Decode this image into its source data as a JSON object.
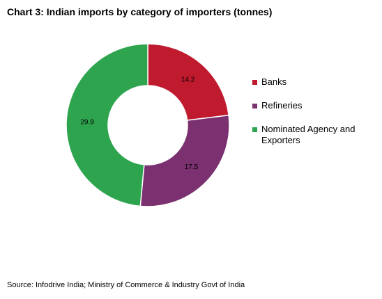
{
  "title": "Chart 3: Indian imports by category of importers (tonnes)",
  "source": "Source: Infodrive India; Ministry of Commerce & Industry Govt of India",
  "colors": {
    "banks": "#bf1a2e",
    "refineries": "#7b3170",
    "nominated": "#2ea44f"
  },
  "chart_data": {
    "type": "pie",
    "donut": true,
    "title": "Chart 3: Indian imports by category of importers (tonnes)",
    "categories": [
      "Banks",
      "Refineries",
      "Nominated Agency and Exporters"
    ],
    "values": [
      14.2,
      17.5,
      29.9
    ],
    "data_labels": [
      "14.2",
      "17.5",
      "29.9"
    ],
    "colors": [
      "#bf1a2e",
      "#7b3170",
      "#2ea44f"
    ],
    "start": "12 o'clock, clockwise",
    "legend_position": "right"
  }
}
